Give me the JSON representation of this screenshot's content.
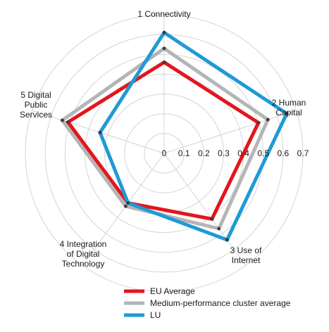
{
  "chart_data": {
    "type": "radar",
    "axes": [
      [
        "1 Connectivity"
      ],
      [
        "2 Human",
        "Capital"
      ],
      [
        "3 Use of",
        "Internet"
      ],
      [
        "4 Integration",
        "of Digital",
        "Technology"
      ],
      [
        "5 Digital",
        "Public",
        "Services"
      ]
    ],
    "ticks": [
      "0",
      "0.1",
      "0.2",
      "0.3",
      "0.4",
      "0.5",
      "0.6",
      "0.7"
    ],
    "rmax": 0.7,
    "grid": true,
    "series": [
      {
        "name": "EU Average",
        "color": "#e3151d",
        "values": [
          0.46,
          0.5,
          0.41,
          0.31,
          0.51
        ]
      },
      {
        "name": "Medium-performance cluster average",
        "color": "#b5b5b5",
        "values": [
          0.53,
          0.55,
          0.47,
          0.33,
          0.54
        ]
      },
      {
        "name": "LU",
        "color": "#1f9ad6",
        "values": [
          0.61,
          0.65,
          0.54,
          0.31,
          0.34
        ]
      }
    ],
    "legend_position": "bottom"
  }
}
